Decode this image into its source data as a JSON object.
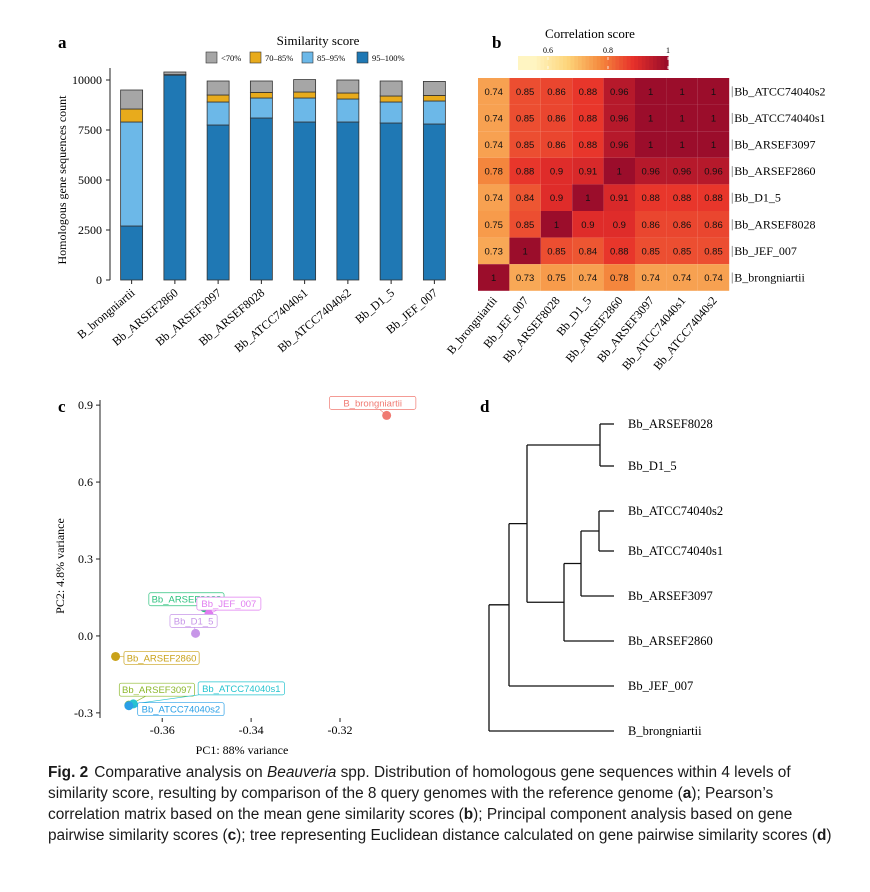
{
  "panels": {
    "a": "a",
    "b": "b",
    "c": "c",
    "d": "d"
  },
  "colors": {
    "stack": [
      "#1f78b4",
      "#6cb8e8",
      "#e8ab1c",
      "#a6a6a6"
    ],
    "corr": [
      "#fff5c2",
      "#fdd57a",
      "#f58a3e",
      "#e7302a",
      "#9b0d2b"
    ],
    "pca": {
      "B_brongniartii": "#f07a72",
      "Bb_ARSEF8028": "#2ec27e",
      "Bb_JEF_007": "#e07cf0",
      "Bb_D1_5": "#c796e8",
      "Bb_ARSEF2860": "#c9a21a",
      "Bb_ARSEF3097": "#8db82e",
      "Bb_ATCC74040s1": "#26c4cf",
      "Bb_ATCC74040s2": "#2a9fe6"
    }
  },
  "chart_data": [
    {
      "type": "bar",
      "stacked": true,
      "title": "Similarity score",
      "ylabel": "Homologous gene sequences count",
      "xlabel": "",
      "ylim": [
        0,
        10500
      ],
      "yticks": [
        "0",
        "2500",
        "5000",
        "7500",
        "10000"
      ],
      "ytick_values": [
        0,
        2500,
        5000,
        7500,
        10000
      ],
      "categories": [
        "B_brongniartii",
        "Bb_ARSEF2860",
        "Bb_ARSEF3097",
        "Bb_ARSEF8028",
        "Bb_ATCC74040s1",
        "Bb_ATCC74040s2",
        "Bb_D1_5",
        "Bb_JEF_007"
      ],
      "series": [
        {
          "name": "95–100%",
          "values": [
            2700,
            10250,
            7750,
            8100,
            7900,
            7900,
            7850,
            7800
          ]
        },
        {
          "name": "85–95%",
          "values": [
            5200,
            0,
            1150,
            1000,
            1200,
            1150,
            1050,
            1150
          ]
        },
        {
          "name": "70–85%",
          "values": [
            650,
            20,
            350,
            280,
            300,
            300,
            300,
            280
          ]
        },
        {
          "name": "<70%",
          "values": [
            950,
            130,
            700,
            570,
            620,
            650,
            750,
            700
          ]
        }
      ],
      "legend": [
        "<70%",
        "70–85%",
        "85–95%",
        "95–100%"
      ]
    },
    {
      "type": "heatmap",
      "title": "Correlation score",
      "colorbar_ticks": [
        "0.6",
        "0.8",
        "1"
      ],
      "colorbar_values": [
        0.6,
        0.8,
        1.0
      ],
      "colorbar_range": [
        0.55,
        1.0
      ],
      "rows": [
        "Bb_ATCC74040s2",
        "Bb_ATCC74040s1",
        "Bb_ARSEF3097",
        "Bb_ARSEF2860",
        "Bb_D1_5",
        "Bb_ARSEF8028",
        "Bb_JEF_007",
        "B_brongniartii"
      ],
      "cols": [
        "B_brongniartii",
        "Bb_JEF_007",
        "Bb_ARSEF8028",
        "Bb_D1_5",
        "Bb_ARSEF2860",
        "Bb_ARSEF3097",
        "Bb_ATCC74040s1",
        "Bb_ATCC74040s2"
      ],
      "values": [
        [
          0.74,
          0.85,
          0.86,
          0.88,
          0.96,
          1,
          1,
          1
        ],
        [
          0.74,
          0.85,
          0.86,
          0.88,
          0.96,
          1,
          1,
          1
        ],
        [
          0.74,
          0.85,
          0.86,
          0.88,
          0.96,
          1,
          1,
          1
        ],
        [
          0.78,
          0.88,
          0.9,
          0.91,
          1,
          0.96,
          0.96,
          0.96
        ],
        [
          0.74,
          0.84,
          0.9,
          1,
          0.91,
          0.88,
          0.88,
          0.88
        ],
        [
          0.75,
          0.85,
          1,
          0.9,
          0.9,
          0.86,
          0.86,
          0.86
        ],
        [
          0.73,
          1,
          0.85,
          0.84,
          0.88,
          0.85,
          0.85,
          0.85
        ],
        [
          1,
          0.73,
          0.75,
          0.74,
          0.78,
          0.74,
          0.74,
          0.74
        ]
      ]
    },
    {
      "type": "scatter",
      "xlabel": "PC1: 88% variance",
      "ylabel": "PC2: 4.8% variance",
      "xlim": [
        -0.374,
        -0.302
      ],
      "ylim": [
        -0.32,
        0.92
      ],
      "xticks": [
        "-0.36",
        "-0.34",
        "-0.32"
      ],
      "xtick_values": [
        -0.36,
        -0.34,
        -0.32
      ],
      "yticks": [
        "-0.3",
        "0.0",
        "0.3",
        "0.6",
        "0.9"
      ],
      "ytick_values": [
        -0.3,
        0.0,
        0.3,
        0.6,
        0.9
      ],
      "points": [
        {
          "label": "B_brongniartii",
          "x": -0.3095,
          "y": 0.86
        },
        {
          "label": "Bb_ARSEF8028",
          "x": -0.3505,
          "y": 0.11
        },
        {
          "label": "Bb_JEF_007",
          "x": -0.3495,
          "y": 0.085
        },
        {
          "label": "Bb_D1_5",
          "x": -0.3525,
          "y": 0.01
        },
        {
          "label": "Bb_ARSEF2860",
          "x": -0.3705,
          "y": -0.08
        },
        {
          "label": "Bb_ARSEF3097",
          "x": -0.3675,
          "y": -0.27
        },
        {
          "label": "Bb_ATCC74040s1",
          "x": -0.3665,
          "y": -0.265
        },
        {
          "label": "Bb_ATCC74040s2",
          "x": -0.3675,
          "y": -0.272
        }
      ]
    },
    {
      "type": "dendrogram",
      "leaves": [
        "Bb_ARSEF8028",
        "Bb_D1_5",
        "Bb_ATCC74040s2",
        "Bb_ATCC74040s1",
        "Bb_ARSEF3097",
        "Bb_ARSEF2860",
        "Bb_JEF_007",
        "B_brongniartii"
      ]
    }
  ],
  "caption": {
    "label": "Fig. 2",
    "text_before_italic": "Comparative analysis on ",
    "italic": "Beauveria",
    "part1": " spp. Distribution of homologous gene sequences within 4 levels of similarity score, resulting by comparison of the 8 query genomes with the reference genome (",
    "ref_a": "a",
    "part2": "); Pearson’s correlation matrix based on the mean gene similarity scores (",
    "ref_b": "b",
    "part3": "); Principal component analysis based on gene pairwise similarity scores (",
    "ref_c": "c",
    "part4": "); tree representing Euclidean distance calculated on gene pairwise similarity scores (",
    "ref_d": "d",
    "part5": ")"
  }
}
